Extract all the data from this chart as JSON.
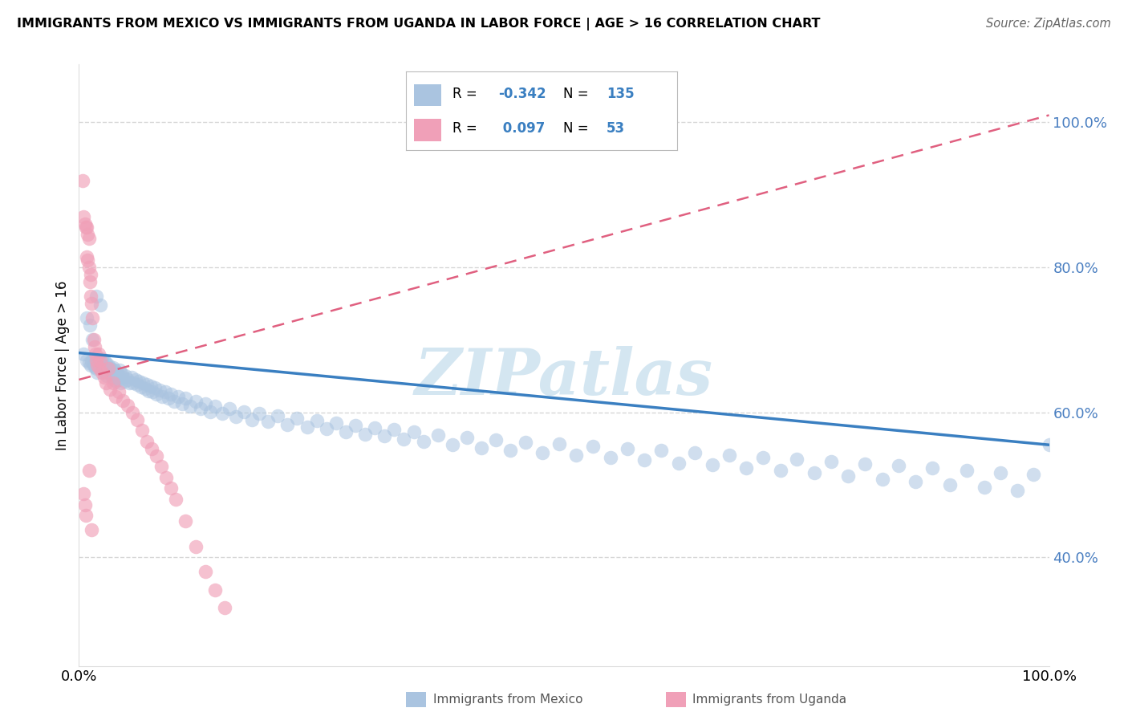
{
  "title": "IMMIGRANTS FROM MEXICO VS IMMIGRANTS FROM UGANDA IN LABOR FORCE | AGE > 16 CORRELATION CHART",
  "source": "Source: ZipAtlas.com",
  "ylabel": "In Labor Force | Age > 16",
  "xlim": [
    0.0,
    1.0
  ],
  "ylim": [
    0.25,
    1.08
  ],
  "y_tick_values": [
    0.4,
    0.6,
    0.8,
    1.0
  ],
  "color_mexico": "#aac4e0",
  "color_uganda": "#f0a0b8",
  "color_line_mexico": "#3a7fc1",
  "color_line_uganda": "#e06080",
  "color_tick_right": "#4a7fc1",
  "background_color": "#ffffff",
  "grid_color": "#cccccc",
  "watermark_color": "#d0e4f0",
  "mexico_line_y0": 0.682,
  "mexico_line_y1": 0.555,
  "uganda_line_y0": 0.645,
  "uganda_line_y1": 1.01,
  "mexico_x": [
    0.005,
    0.008,
    0.01,
    0.012,
    0.013,
    0.015,
    0.016,
    0.017,
    0.018,
    0.019,
    0.02,
    0.021,
    0.022,
    0.023,
    0.024,
    0.025,
    0.026,
    0.027,
    0.028,
    0.029,
    0.03,
    0.031,
    0.032,
    0.033,
    0.034,
    0.035,
    0.036,
    0.037,
    0.038,
    0.039,
    0.04,
    0.041,
    0.042,
    0.043,
    0.044,
    0.045,
    0.047,
    0.048,
    0.05,
    0.052,
    0.054,
    0.056,
    0.058,
    0.06,
    0.062,
    0.064,
    0.066,
    0.068,
    0.07,
    0.072,
    0.074,
    0.076,
    0.078,
    0.08,
    0.083,
    0.086,
    0.089,
    0.092,
    0.095,
    0.098,
    0.102,
    0.106,
    0.11,
    0.115,
    0.12,
    0.125,
    0.13,
    0.135,
    0.14,
    0.148,
    0.155,
    0.162,
    0.17,
    0.178,
    0.186,
    0.195,
    0.205,
    0.215,
    0.225,
    0.235,
    0.245,
    0.255,
    0.265,
    0.275,
    0.285,
    0.295,
    0.305,
    0.315,
    0.325,
    0.335,
    0.345,
    0.355,
    0.37,
    0.385,
    0.4,
    0.415,
    0.43,
    0.445,
    0.46,
    0.478,
    0.495,
    0.512,
    0.53,
    0.548,
    0.565,
    0.583,
    0.6,
    0.618,
    0.635,
    0.653,
    0.67,
    0.688,
    0.705,
    0.723,
    0.74,
    0.758,
    0.775,
    0.793,
    0.81,
    0.828,
    0.845,
    0.862,
    0.88,
    0.898,
    0.915,
    0.933,
    0.95,
    0.967,
    0.984,
    1.0,
    0.008,
    0.011,
    0.014,
    0.018,
    0.022
  ],
  "mexico_y": [
    0.68,
    0.672,
    0.668,
    0.665,
    0.67,
    0.666,
    0.663,
    0.668,
    0.66,
    0.655,
    0.672,
    0.668,
    0.664,
    0.659,
    0.674,
    0.658,
    0.671,
    0.655,
    0.668,
    0.651,
    0.665,
    0.66,
    0.655,
    0.66,
    0.648,
    0.662,
    0.645,
    0.658,
    0.643,
    0.655,
    0.65,
    0.645,
    0.658,
    0.64,
    0.653,
    0.648,
    0.643,
    0.65,
    0.645,
    0.641,
    0.648,
    0.64,
    0.645,
    0.638,
    0.643,
    0.635,
    0.641,
    0.633,
    0.638,
    0.63,
    0.636,
    0.628,
    0.634,
    0.625,
    0.631,
    0.622,
    0.628,
    0.619,
    0.625,
    0.615,
    0.622,
    0.612,
    0.619,
    0.608,
    0.615,
    0.605,
    0.612,
    0.601,
    0.608,
    0.598,
    0.605,
    0.594,
    0.601,
    0.59,
    0.598,
    0.587,
    0.595,
    0.583,
    0.592,
    0.58,
    0.589,
    0.577,
    0.585,
    0.573,
    0.582,
    0.57,
    0.579,
    0.567,
    0.576,
    0.563,
    0.573,
    0.56,
    0.568,
    0.555,
    0.565,
    0.551,
    0.562,
    0.548,
    0.559,
    0.544,
    0.556,
    0.541,
    0.553,
    0.537,
    0.55,
    0.534,
    0.547,
    0.53,
    0.544,
    0.527,
    0.541,
    0.523,
    0.538,
    0.52,
    0.535,
    0.516,
    0.532,
    0.512,
    0.529,
    0.508,
    0.526,
    0.504,
    0.523,
    0.5,
    0.52,
    0.496,
    0.517,
    0.492,
    0.514,
    0.555,
    0.73,
    0.72,
    0.7,
    0.76,
    0.748
  ],
  "uganda_x": [
    0.004,
    0.005,
    0.006,
    0.007,
    0.008,
    0.008,
    0.009,
    0.009,
    0.01,
    0.01,
    0.011,
    0.012,
    0.012,
    0.013,
    0.014,
    0.015,
    0.016,
    0.017,
    0.018,
    0.019,
    0.02,
    0.021,
    0.022,
    0.024,
    0.026,
    0.028,
    0.03,
    0.032,
    0.035,
    0.038,
    0.041,
    0.045,
    0.05,
    0.055,
    0.06,
    0.065,
    0.07,
    0.075,
    0.08,
    0.085,
    0.09,
    0.095,
    0.1,
    0.11,
    0.12,
    0.13,
    0.14,
    0.15,
    0.005,
    0.006,
    0.007,
    0.01,
    0.013
  ],
  "uganda_y": [
    0.92,
    0.87,
    0.86,
    0.855,
    0.815,
    0.855,
    0.81,
    0.845,
    0.8,
    0.84,
    0.78,
    0.76,
    0.79,
    0.75,
    0.73,
    0.7,
    0.69,
    0.68,
    0.672,
    0.665,
    0.68,
    0.66,
    0.672,
    0.655,
    0.648,
    0.64,
    0.66,
    0.632,
    0.64,
    0.622,
    0.628,
    0.616,
    0.61,
    0.6,
    0.59,
    0.575,
    0.56,
    0.55,
    0.54,
    0.525,
    0.51,
    0.495,
    0.48,
    0.45,
    0.415,
    0.38,
    0.355,
    0.33,
    0.488,
    0.472,
    0.458,
    0.52,
    0.438
  ]
}
